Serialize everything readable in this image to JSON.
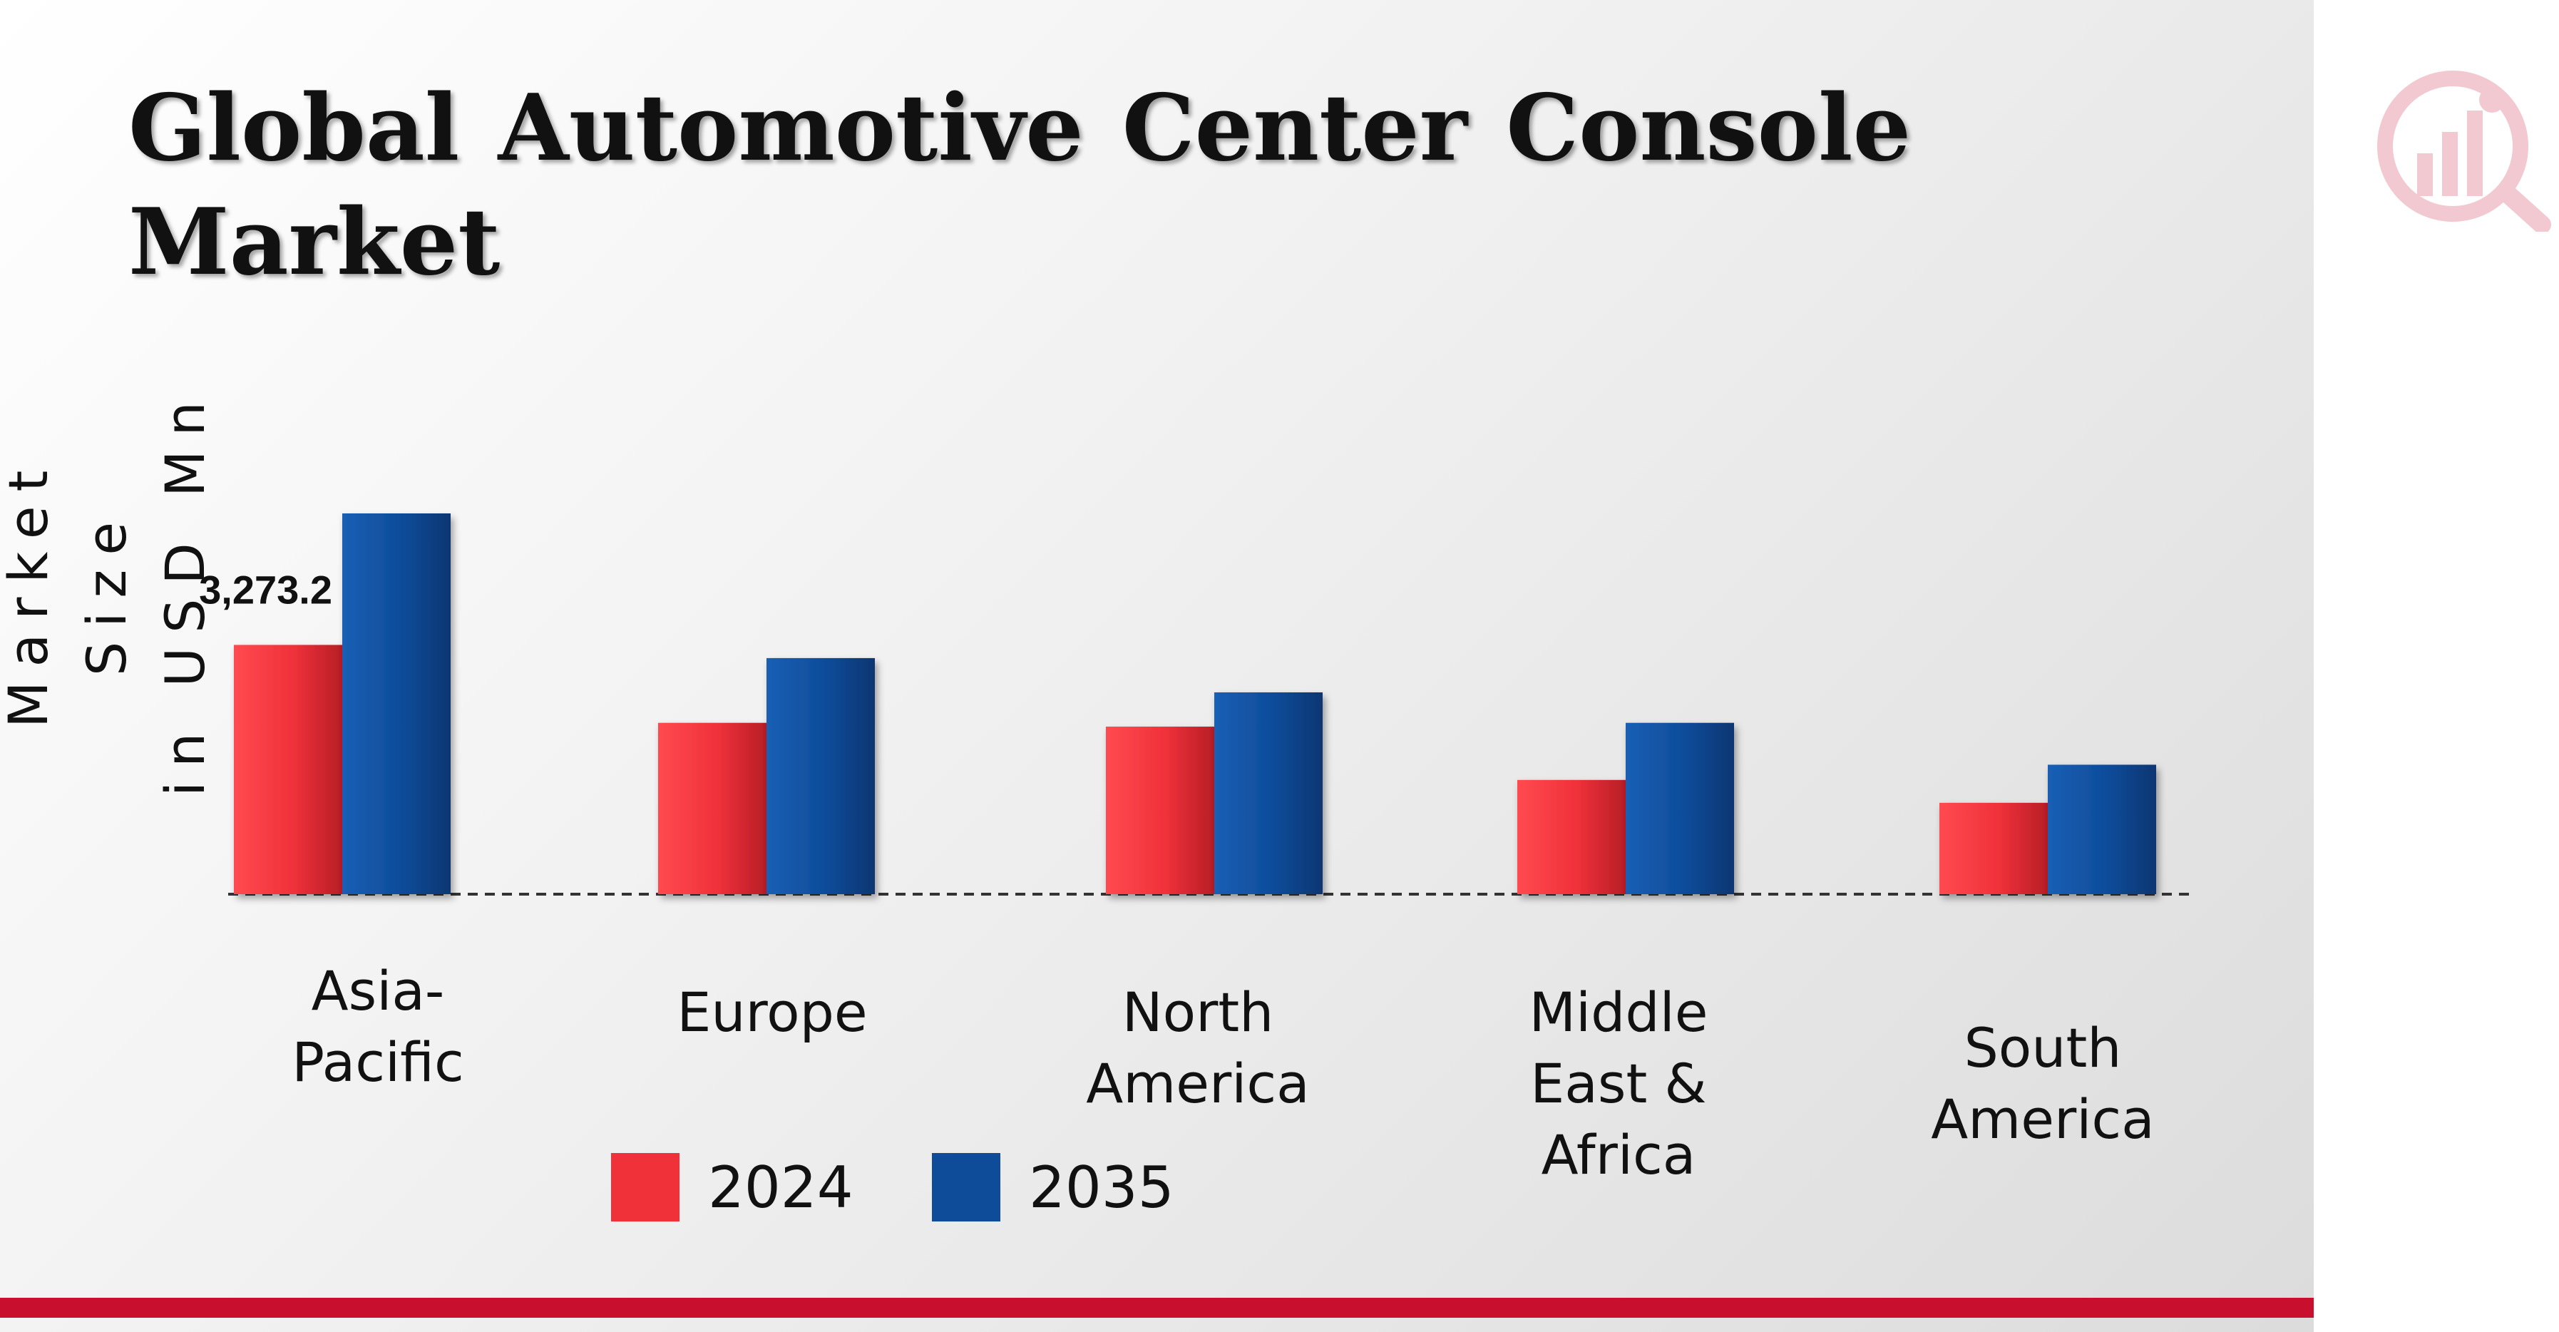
{
  "title": "Global Automotive Center Console Market",
  "colors": {
    "s2024": "#f0313a",
    "s2035": "#0e4c9a",
    "accent": "#c8102e"
  },
  "logo": {
    "name": "market-research-logo-icon"
  },
  "chart_data": {
    "type": "bar",
    "title": "Global Automotive Center Console Market",
    "ylabel_line1": "Market Size",
    "ylabel_line2": "in USD Mn",
    "xlabel": "",
    "categories": [
      "Asia-Pacific",
      "Europe",
      "North America",
      "Middle East & Africa",
      "South America"
    ],
    "series": [
      {
        "name": "2024",
        "values": [
          3273.2,
          2250,
          2200,
          1500,
          1200
        ]
      },
      {
        "name": "2035",
        "values": [
          5000,
          3100,
          2650,
          2250,
          1700
        ]
      }
    ],
    "data_labels": [
      {
        "series": "2024",
        "category": "Asia-Pacific",
        "text": "3,273.2"
      }
    ],
    "legend": [
      "2024",
      "2035"
    ],
    "legend_position": "bottom",
    "grid": false,
    "ylim": [
      0,
      5500
    ]
  }
}
